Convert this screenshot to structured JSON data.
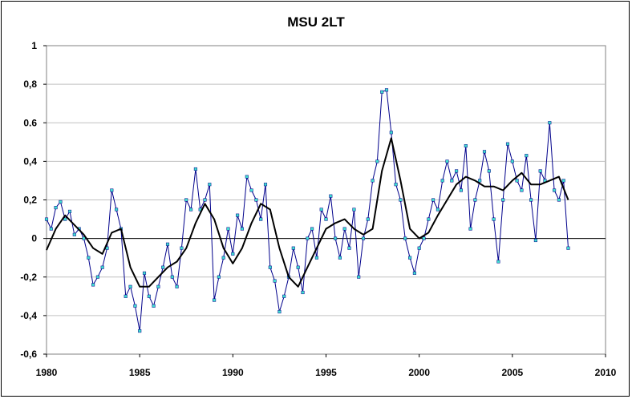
{
  "chart_data": {
    "type": "line",
    "title": "MSU 2LT",
    "xlabel": "",
    "ylabel": "",
    "xlim": [
      1980,
      2010
    ],
    "ylim": [
      -0.6,
      1.0
    ],
    "x_ticks": [
      1980,
      1985,
      1990,
      1995,
      2000,
      2005,
      2010
    ],
    "x_tick_labels": [
      "1980",
      "1985",
      "1990",
      "1995",
      "2000",
      "2005",
      "2010"
    ],
    "y_ticks": [
      -0.6,
      -0.4,
      -0.2,
      0,
      0.2,
      0.4,
      0.6,
      0.8,
      1.0
    ],
    "y_tick_labels": [
      "-0,6",
      "-0,4",
      "-0,2",
      "0",
      "0,2",
      "0,4",
      "0.6",
      "0,8",
      "1"
    ],
    "grid": "horizontal",
    "legend": "none",
    "series": [
      {
        "kind": "monthly",
        "color": "#00008B",
        "marker_color": "#40E0D0",
        "x": [
          1980.0,
          1980.25,
          1980.5,
          1980.75,
          1981.0,
          1981.25,
          1981.5,
          1981.75,
          1982.0,
          1982.25,
          1982.5,
          1982.75,
          1983.0,
          1983.25,
          1983.5,
          1983.75,
          1984.0,
          1984.25,
          1984.5,
          1984.75,
          1985.0,
          1985.25,
          1985.5,
          1985.75,
          1986.0,
          1986.25,
          1986.5,
          1986.75,
          1987.0,
          1987.25,
          1987.5,
          1987.75,
          1988.0,
          1988.25,
          1988.5,
          1988.75,
          1989.0,
          1989.25,
          1989.5,
          1989.75,
          1990.0,
          1990.25,
          1990.5,
          1990.75,
          1991.0,
          1991.25,
          1991.5,
          1991.75,
          1992.0,
          1992.25,
          1992.5,
          1992.75,
          1993.0,
          1993.25,
          1993.5,
          1993.75,
          1994.0,
          1994.25,
          1994.5,
          1994.75,
          1995.0,
          1995.25,
          1995.5,
          1995.75,
          1996.0,
          1996.25,
          1996.5,
          1996.75,
          1997.0,
          1997.25,
          1997.5,
          1997.75,
          1998.0,
          1998.25,
          1998.5,
          1998.75,
          1999.0,
          1999.25,
          1999.5,
          1999.75,
          2000.0,
          2000.25,
          2000.5,
          2000.75,
          2001.0,
          2001.25,
          2001.5,
          2001.75,
          2002.0,
          2002.25,
          2002.5,
          2002.75,
          2003.0,
          2003.25,
          2003.5,
          2003.75,
          2004.0,
          2004.25,
          2004.5,
          2004.75,
          2005.0,
          2005.25,
          2005.5,
          2005.75,
          2006.0,
          2006.25,
          2006.5,
          2006.75,
          2007.0,
          2007.25,
          2007.5,
          2007.75,
          2008.0
        ],
        "values": [
          0.1,
          0.05,
          0.16,
          0.19,
          0.1,
          0.14,
          0.02,
          0.05,
          0.0,
          -0.1,
          -0.24,
          -0.2,
          -0.15,
          -0.05,
          0.25,
          0.15,
          0.05,
          -0.3,
          -0.25,
          -0.35,
          -0.48,
          -0.18,
          -0.3,
          -0.35,
          -0.25,
          -0.15,
          -0.03,
          -0.2,
          -0.25,
          -0.05,
          0.2,
          0.15,
          0.36,
          0.15,
          0.2,
          0.28,
          -0.32,
          -0.2,
          -0.1,
          0.05,
          -0.08,
          0.12,
          0.05,
          0.32,
          0.25,
          0.2,
          0.1,
          0.28,
          -0.15,
          -0.22,
          -0.38,
          -0.3,
          -0.2,
          -0.05,
          -0.15,
          -0.28,
          0.0,
          0.05,
          -0.1,
          0.15,
          0.1,
          0.22,
          0.0,
          -0.1,
          0.05,
          -0.05,
          0.15,
          -0.2,
          0.0,
          0.1,
          0.3,
          0.4,
          0.76,
          0.77,
          0.55,
          0.28,
          0.2,
          0.0,
          -0.1,
          -0.18,
          -0.05,
          0.0,
          0.1,
          0.2,
          0.15,
          0.3,
          0.4,
          0.3,
          0.35,
          0.25,
          0.48,
          0.05,
          0.2,
          0.3,
          0.45,
          0.35,
          0.1,
          -0.12,
          0.2,
          0.49,
          0.4,
          0.3,
          0.25,
          0.43,
          0.2,
          -0.01,
          0.35,
          0.3,
          0.6,
          0.25,
          0.2,
          0.3,
          -0.05
        ]
      },
      {
        "kind": "running mean",
        "color": "#000000",
        "x": [
          1980.0,
          1980.5,
          1981.0,
          1981.5,
          1982.0,
          1982.5,
          1983.0,
          1983.5,
          1984.0,
          1984.5,
          1985.0,
          1985.5,
          1986.0,
          1986.5,
          1987.0,
          1987.5,
          1988.0,
          1988.5,
          1989.0,
          1989.5,
          1990.0,
          1990.5,
          1991.0,
          1991.5,
          1992.0,
          1992.5,
          1993.0,
          1993.5,
          1994.0,
          1994.5,
          1995.0,
          1995.5,
          1996.0,
          1996.5,
          1997.0,
          1997.5,
          1998.0,
          1998.5,
          1999.0,
          1999.5,
          2000.0,
          2000.5,
          2001.0,
          2001.5,
          2002.0,
          2002.5,
          2003.0,
          2003.5,
          2004.0,
          2004.5,
          2005.0,
          2005.5,
          2006.0,
          2006.5,
          2007.0,
          2007.5,
          2008.0
        ],
        "values": [
          -0.06,
          0.05,
          0.12,
          0.07,
          0.02,
          -0.05,
          -0.08,
          0.03,
          0.05,
          -0.15,
          -0.25,
          -0.25,
          -0.2,
          -0.15,
          -0.12,
          -0.05,
          0.08,
          0.18,
          0.1,
          -0.05,
          -0.13,
          -0.05,
          0.08,
          0.18,
          0.15,
          -0.05,
          -0.2,
          -0.25,
          -0.15,
          -0.05,
          0.05,
          0.08,
          0.1,
          0.05,
          0.02,
          0.05,
          0.35,
          0.52,
          0.3,
          0.05,
          0.0,
          0.03,
          0.12,
          0.2,
          0.28,
          0.32,
          0.3,
          0.27,
          0.27,
          0.25,
          0.3,
          0.34,
          0.28,
          0.28,
          0.3,
          0.32,
          0.2
        ]
      }
    ]
  }
}
